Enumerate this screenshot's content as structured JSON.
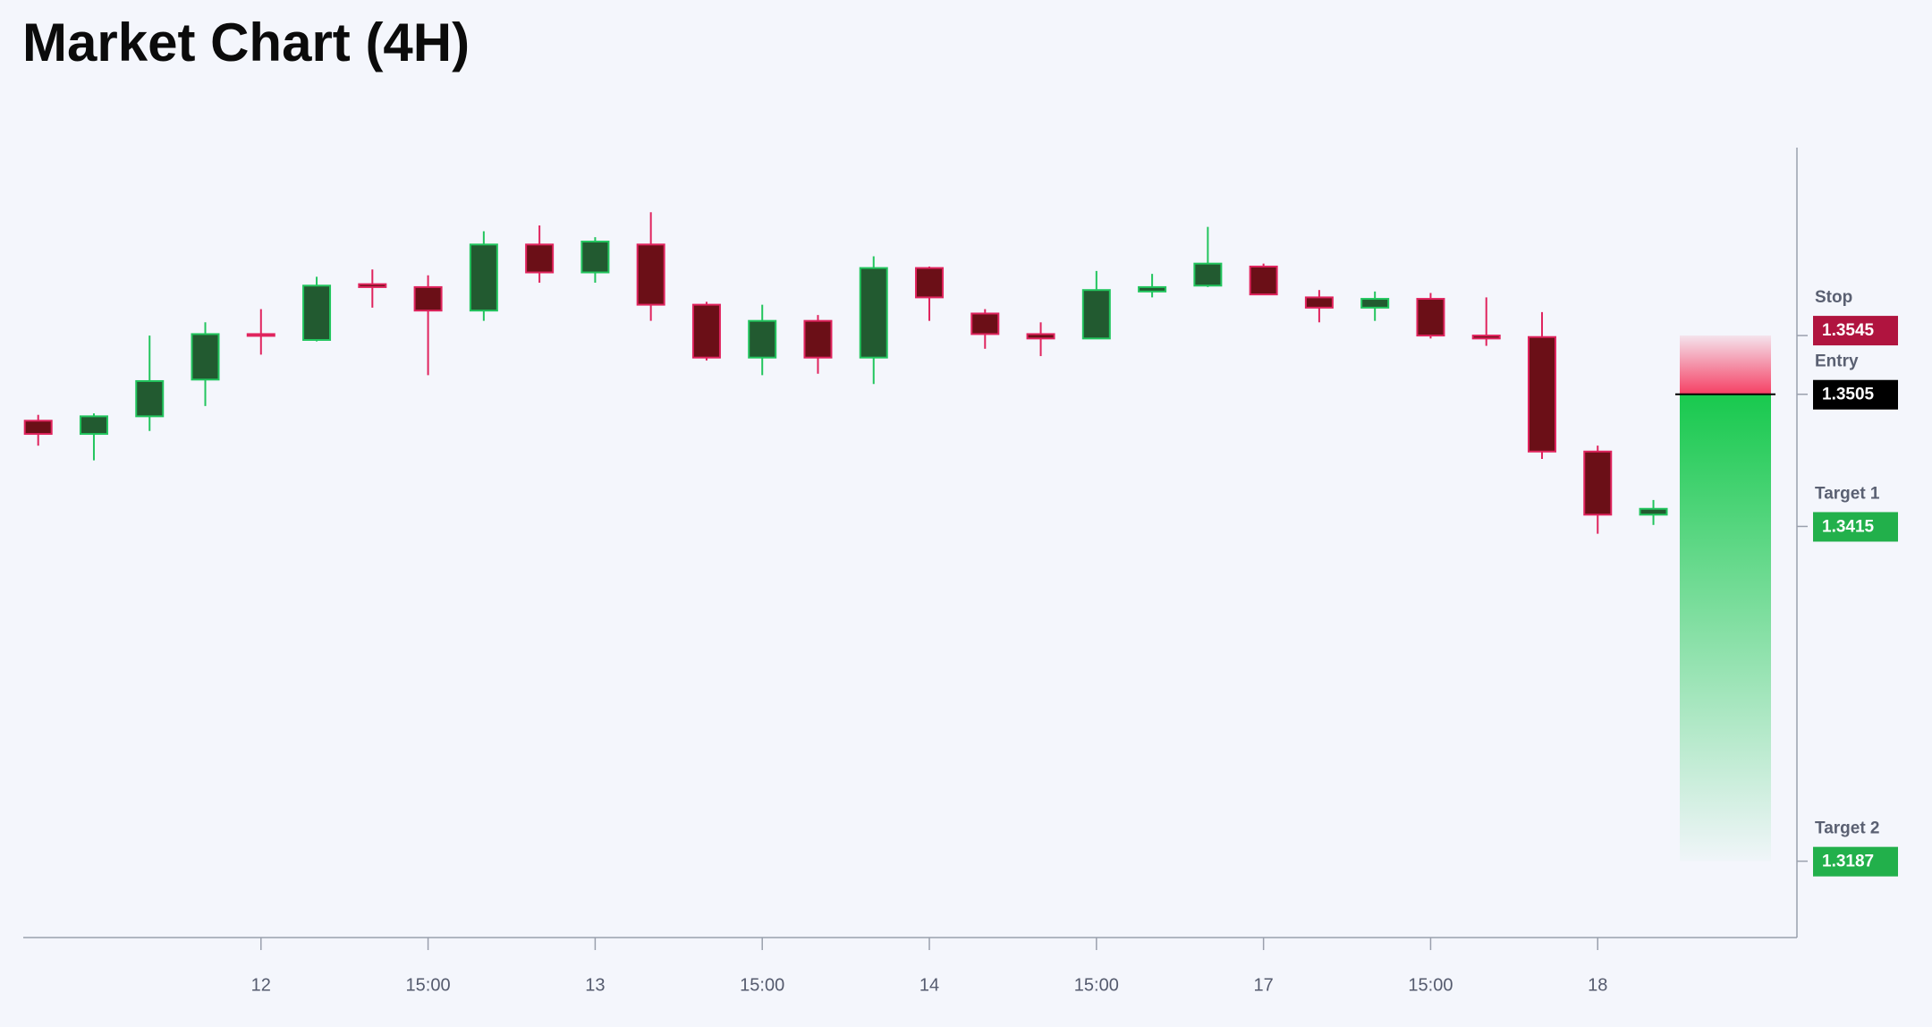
{
  "chart_data": {
    "type": "candlestick",
    "title": "Market Chart (4H)",
    "categories": [
      null,
      null,
      null,
      null,
      "12",
      null,
      null,
      "15:00",
      null,
      null,
      "13",
      null,
      null,
      "15:00",
      null,
      null,
      "14",
      null,
      null,
      "15:00",
      null,
      null,
      "17",
      null,
      null,
      "15:00",
      null,
      null,
      "18",
      null
    ],
    "series": {
      "open": [
        1.3487,
        1.3478,
        1.349,
        1.3515,
        1.3546,
        1.3542,
        1.358,
        1.3578,
        1.3562,
        1.3607,
        1.3588,
        1.3607,
        1.3566,
        1.353,
        1.3555,
        1.353,
        1.3591,
        1.356,
        1.3546,
        1.3543,
        1.3575,
        1.3579,
        1.3592,
        1.3571,
        1.3564,
        1.357,
        1.3545,
        1.3544,
        1.3466,
        1.3423
      ],
      "high": [
        1.3491,
        1.3492,
        1.3545,
        1.3554,
        1.3563,
        1.3585,
        1.359,
        1.3586,
        1.3616,
        1.362,
        1.3612,
        1.3629,
        1.3568,
        1.3566,
        1.3559,
        1.3599,
        1.3592,
        1.3563,
        1.3554,
        1.3589,
        1.3587,
        1.3619,
        1.3594,
        1.3576,
        1.3575,
        1.3574,
        1.3571,
        1.3561,
        1.347,
        1.3433
      ],
      "low": [
        1.347,
        1.346,
        1.348,
        1.3497,
        1.3532,
        1.3541,
        1.3564,
        1.3518,
        1.3555,
        1.3581,
        1.3581,
        1.3555,
        1.3528,
        1.3518,
        1.3519,
        1.3512,
        1.3555,
        1.3536,
        1.3531,
        1.3543,
        1.3571,
        1.3578,
        1.3573,
        1.3554,
        1.3555,
        1.3543,
        1.3538,
        1.3461,
        1.341,
        1.3416
      ],
      "close": [
        1.3478,
        1.349,
        1.3514,
        1.3546,
        1.3545,
        1.3579,
        1.3578,
        1.3562,
        1.3607,
        1.3588,
        1.3609,
        1.3566,
        1.353,
        1.3555,
        1.353,
        1.3591,
        1.3571,
        1.3546,
        1.3543,
        1.3576,
        1.3578,
        1.3594,
        1.3573,
        1.3564,
        1.357,
        1.3545,
        1.3543,
        1.3466,
        1.3423,
        1.3427
      ]
    },
    "up_color": {
      "fill": "#225a30",
      "stroke": "#22c55e"
    },
    "down_color": {
      "fill": "#6b0f17",
      "stroke": "#e0245e"
    },
    "ylim": [
      1.3135,
      1.3673
    ],
    "levels": [
      {
        "name": "Stop",
        "value": 1.3545,
        "color": "#b0143f"
      },
      {
        "name": "Entry",
        "value": 1.3505,
        "color": "#000000"
      },
      {
        "name": "Target 1",
        "value": 1.3415,
        "color": "#22b04b"
      },
      {
        "name": "Target 2",
        "value": 1.3187,
        "color": "#22b04b"
      }
    ]
  }
}
